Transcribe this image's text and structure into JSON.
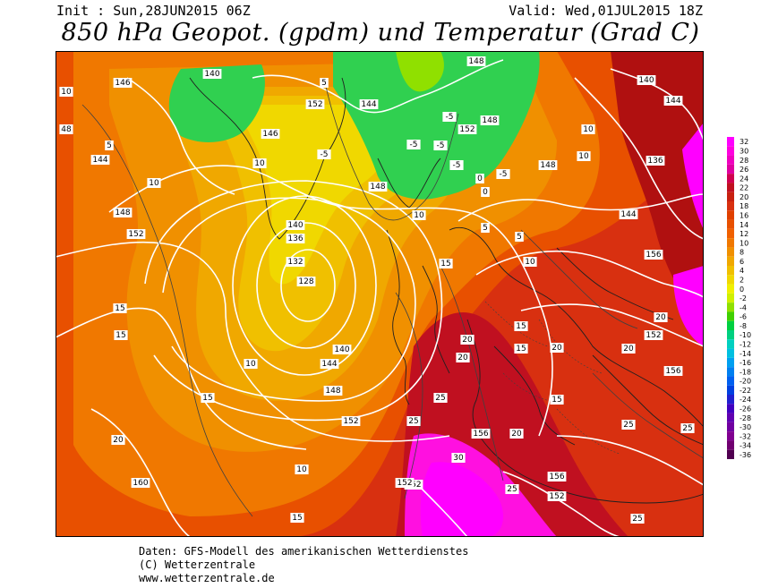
{
  "header": {
    "init": "Init : Sun,28JUN2015 06Z",
    "valid": "Valid: Wed,01JUL2015 18Z",
    "title": "850 hPa Geopot. (gpdm) und Temperatur (Grad C)"
  },
  "footer": {
    "line1": "Daten: GFS-Modell des amerikanischen Wetterdienstes",
    "line2": "(C) Wetterzentrale",
    "line3": "www.wetterzentrale.de"
  },
  "legend": {
    "levels": [
      "32",
      "30",
      "28",
      "26",
      "24",
      "22",
      "20",
      "18",
      "16",
      "14",
      "12",
      "10",
      "8",
      "6",
      "4",
      "2",
      "0",
      "-2",
      "-4",
      "-6",
      "-8",
      "-10",
      "-12",
      "-14",
      "-16",
      "-18",
      "-20",
      "-22",
      "-24",
      "-26",
      "-28",
      "-30",
      "-32",
      "-34",
      "-36"
    ],
    "colors": [
      "#ff00ff",
      "#ff00e0",
      "#f000c0",
      "#e000a0",
      "#d00050",
      "#c01020",
      "#c82010",
      "#d83010",
      "#e04000",
      "#e85000",
      "#f06000",
      "#f07800",
      "#f09000",
      "#f0a800",
      "#f0c000",
      "#f0d800",
      "#f0f000",
      "#d0f000",
      "#90e000",
      "#40d000",
      "#00d040",
      "#00d080",
      "#00d0c0",
      "#00c0e0",
      "#00a0f0",
      "#0080f0",
      "#0060f0",
      "#0040e0",
      "#2020d0",
      "#4000c0",
      "#6000b0",
      "#7000a0",
      "#800090",
      "#700070",
      "#500050"
    ]
  },
  "map_labels": {
    "geopotential": [
      "146",
      "140",
      "144",
      "152",
      "148",
      "148",
      "144",
      "140",
      "136",
      "132",
      "128",
      "140",
      "144",
      "148",
      "152",
      "156",
      "160",
      "152",
      "152",
      "156",
      "152",
      "156",
      "152",
      "148",
      "144",
      "148",
      "152",
      "156",
      "136",
      "140",
      "148",
      "152",
      "144",
      "146"
    ],
    "temperature": [
      "10",
      "48",
      "5",
      "10",
      "10",
      "5",
      "-5",
      "-5",
      "-5",
      "-5",
      "-5",
      "0",
      "5",
      "10",
      "10",
      "15",
      "15",
      "15",
      "20",
      "20",
      "25",
      "25",
      "30",
      "25",
      "15",
      "15",
      "20",
      "15",
      "20",
      "15",
      "10",
      "10",
      "10",
      "15",
      "20",
      "25",
      "20",
      "25",
      "20",
      "25",
      "10",
      "5",
      "-5",
      "0"
    ]
  },
  "colors": {
    "warm_core": "#c81a1a",
    "hot_magenta": "#ff00ff",
    "orange": "#f07800",
    "yellow": "#f0d800",
    "green": "#20d040",
    "contour": "#ffffff"
  }
}
